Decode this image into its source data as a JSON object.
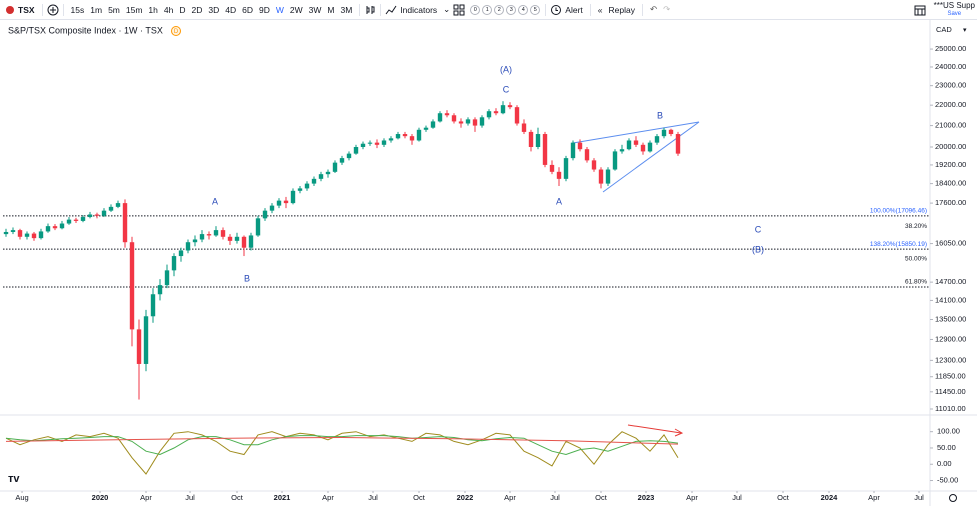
{
  "toolbar": {
    "symbol": "TSX",
    "intervals": [
      "15s",
      "1m",
      "5m",
      "15m",
      "1h",
      "4h",
      "D",
      "2D",
      "3D",
      "4D",
      "6D",
      "9D",
      "W",
      "2W",
      "3W",
      "M",
      "3M"
    ],
    "active_interval_index": 12,
    "indicators": "Indicators",
    "layouts": [
      "0",
      "1",
      "2",
      "3",
      "4",
      "5"
    ],
    "alert": "Alert",
    "replay": "Replay",
    "account": "***US Supp",
    "save": "Save"
  },
  "chart_data": {
    "type": "candlestick",
    "legend_title": "S&P/TSX Composite Index · 1W · TSX",
    "badge": "D",
    "currency": "CAD",
    "log_scale": true,
    "up_color": "#089981",
    "down_color": "#f23645",
    "ylim": [
      10985,
      26590
    ],
    "yticks": [
      {
        "value": 25000,
        "label": "25000.00"
      },
      {
        "value": 24000,
        "label": "24000.00"
      },
      {
        "value": 23000,
        "label": "23000.00"
      },
      {
        "value": 22000,
        "label": "22000.00"
      },
      {
        "value": 21000,
        "label": "21000.00"
      },
      {
        "value": 20000,
        "label": "20000.00"
      },
      {
        "value": 19200,
        "label": "19200.00"
      },
      {
        "value": 18400,
        "label": "18400.00"
      },
      {
        "value": 17600,
        "label": "17600.00"
      },
      {
        "value": 16050,
        "label": "16050.00"
      },
      {
        "value": 14700,
        "label": "14700.00"
      },
      {
        "value": 14100,
        "label": "14100.00"
      },
      {
        "value": 13500,
        "label": "13500.00"
      },
      {
        "value": 12900,
        "label": "12900.00"
      },
      {
        "value": 12300,
        "label": "12300.00"
      },
      {
        "value": 11850,
        "label": "11850.00"
      },
      {
        "value": 11450,
        "label": "11450.00"
      },
      {
        "value": 11010,
        "label": "11010.00"
      }
    ],
    "xlim": [
      -0.43,
      132
    ],
    "xticks": [
      {
        "value": 2.29,
        "label": "Aug"
      },
      {
        "value": 13.43,
        "label": "2020"
      },
      {
        "value": 20,
        "label": "Apr"
      },
      {
        "value": 26.29,
        "label": "Jul"
      },
      {
        "value": 33,
        "label": "Oct"
      },
      {
        "value": 39.43,
        "label": "2021"
      },
      {
        "value": 46,
        "label": "Apr"
      },
      {
        "value": 52.43,
        "label": "Jul"
      },
      {
        "value": 59,
        "label": "Oct"
      },
      {
        "value": 65.57,
        "label": "2022"
      },
      {
        "value": 72,
        "label": "Apr"
      },
      {
        "value": 78.43,
        "label": "Jul"
      },
      {
        "value": 85,
        "label": "Oct"
      },
      {
        "value": 91.43,
        "label": "2023"
      },
      {
        "value": 98,
        "label": "Apr"
      },
      {
        "value": 104.43,
        "label": "Jul"
      },
      {
        "value": 111,
        "label": "Oct"
      },
      {
        "value": 117.57,
        "label": "2024"
      },
      {
        "value": 124,
        "label": "Apr"
      },
      {
        "value": 130.43,
        "label": "Jul"
      }
    ],
    "candles": [
      [
        16400,
        16600,
        16300,
        16480
      ],
      [
        16480,
        16650,
        16400,
        16550
      ],
      [
        16550,
        16600,
        16200,
        16300
      ],
      [
        16300,
        16500,
        16200,
        16420
      ],
      [
        16420,
        16480,
        16150,
        16250
      ],
      [
        16250,
        16600,
        16200,
        16500
      ],
      [
        16500,
        16800,
        16450,
        16700
      ],
      [
        16700,
        16780,
        16550,
        16620
      ],
      [
        16620,
        16900,
        16580,
        16800
      ],
      [
        16800,
        17050,
        16750,
        16950
      ],
      [
        16950,
        17020,
        16820,
        16900
      ],
      [
        16900,
        17120,
        16850,
        17050
      ],
      [
        17050,
        17250,
        17000,
        17150
      ],
      [
        17150,
        17220,
        17000,
        17100
      ],
      [
        17100,
        17400,
        17050,
        17300
      ],
      [
        17300,
        17550,
        17250,
        17450
      ],
      [
        17450,
        17700,
        17400,
        17600
      ],
      [
        17600,
        17750,
        15900,
        16100
      ],
      [
        16100,
        16300,
        12700,
        13200
      ],
      [
        13200,
        13500,
        11250,
        12200
      ],
      [
        12200,
        13800,
        12000,
        13600
      ],
      [
        13600,
        14500,
        13400,
        14300
      ],
      [
        14300,
        14800,
        14100,
        14600
      ],
      [
        14600,
        15300,
        14500,
        15100
      ],
      [
        15100,
        15700,
        14900,
        15600
      ],
      [
        15600,
        15900,
        15400,
        15800
      ],
      [
        15800,
        16200,
        15700,
        16100
      ],
      [
        16100,
        16350,
        15950,
        16200
      ],
      [
        16200,
        16550,
        16100,
        16400
      ],
      [
        16400,
        16500,
        16200,
        16350
      ],
      [
        16350,
        16700,
        16300,
        16550
      ],
      [
        16550,
        16650,
        16200,
        16300
      ],
      [
        16300,
        16400,
        16000,
        16150
      ],
      [
        16150,
        16450,
        16050,
        16300
      ],
      [
        16300,
        16350,
        15600,
        15900
      ],
      [
        15900,
        16450,
        15800,
        16350
      ],
      [
        16350,
        17100,
        16300,
        17000
      ],
      [
        17000,
        17400,
        16900,
        17300
      ],
      [
        17300,
        17600,
        17200,
        17500
      ],
      [
        17500,
        17800,
        17400,
        17700
      ],
      [
        17700,
        17850,
        17400,
        17600
      ],
      [
        17600,
        18200,
        17550,
        18100
      ],
      [
        18100,
        18300,
        18000,
        18200
      ],
      [
        18200,
        18500,
        18100,
        18400
      ],
      [
        18400,
        18700,
        18300,
        18600
      ],
      [
        18600,
        18900,
        18500,
        18800
      ],
      [
        18800,
        19000,
        18650,
        18900
      ],
      [
        18900,
        19400,
        18850,
        19300
      ],
      [
        19300,
        19600,
        19200,
        19500
      ],
      [
        19500,
        19800,
        19400,
        19700
      ],
      [
        19700,
        20100,
        19650,
        20000
      ],
      [
        20000,
        20250,
        19900,
        20150
      ],
      [
        20150,
        20300,
        20050,
        20200
      ],
      [
        20200,
        20350,
        19950,
        20100
      ],
      [
        20100,
        20400,
        20000,
        20300
      ],
      [
        20300,
        20500,
        20200,
        20400
      ],
      [
        20400,
        20700,
        20350,
        20600
      ],
      [
        20600,
        20700,
        20400,
        20500
      ],
      [
        20500,
        20600,
        20100,
        20300
      ],
      [
        20300,
        20900,
        20250,
        20800
      ],
      [
        20800,
        21000,
        20700,
        20900
      ],
      [
        20900,
        21300,
        20850,
        21200
      ],
      [
        21200,
        21700,
        21150,
        21600
      ],
      [
        21600,
        21750,
        21400,
        21500
      ],
      [
        21500,
        21600,
        21100,
        21200
      ],
      [
        21200,
        21350,
        20900,
        21100
      ],
      [
        21100,
        21400,
        21000,
        21300
      ],
      [
        21300,
        21400,
        20700,
        21000
      ],
      [
        21000,
        21500,
        20900,
        21400
      ],
      [
        21400,
        21800,
        21300,
        21700
      ],
      [
        21700,
        21850,
        21500,
        21600
      ],
      [
        21600,
        22200,
        21550,
        22000
      ],
      [
        22000,
        22150,
        21800,
        21900
      ],
      [
        21900,
        22000,
        21000,
        21100
      ],
      [
        21100,
        21300,
        20600,
        20700
      ],
      [
        20700,
        20800,
        19800,
        20000
      ],
      [
        20000,
        20900,
        19900,
        20600
      ],
      [
        20600,
        20700,
        19100,
        19200
      ],
      [
        19200,
        19400,
        18800,
        18900
      ],
      [
        18900,
        19100,
        18300,
        18600
      ],
      [
        18600,
        19600,
        18500,
        19500
      ],
      [
        19500,
        20300,
        19400,
        20200
      ],
      [
        20200,
        20350,
        19800,
        19900
      ],
      [
        19900,
        20000,
        19300,
        19400
      ],
      [
        19400,
        19500,
        18900,
        19000
      ],
      [
        19000,
        19100,
        18200,
        18400
      ],
      [
        18400,
        19100,
        18300,
        19000
      ],
      [
        19000,
        19900,
        18950,
        19800
      ],
      [
        19800,
        20100,
        19700,
        19900
      ],
      [
        19900,
        20400,
        19850,
        20300
      ],
      [
        20300,
        20500,
        20000,
        20100
      ],
      [
        20100,
        20200,
        19650,
        19800
      ],
      [
        19800,
        20300,
        19750,
        20200
      ],
      [
        20200,
        20600,
        20100,
        20500
      ],
      [
        20500,
        20900,
        20400,
        20800
      ],
      [
        20800,
        20850,
        20500,
        20600
      ],
      [
        20600,
        20700,
        19600,
        19700
      ]
    ],
    "levels": [
      {
        "label": "100.00%(17096.46)",
        "value": 17096.46,
        "line": true,
        "color": "#2962ff"
      },
      {
        "label": "38.20%",
        "value": 16700,
        "line": false,
        "color": "#131722"
      },
      {
        "label": "138.20%(15850.19)",
        "value": 15850.19,
        "line": true,
        "color": "#2962ff"
      },
      {
        "label": "50.00%",
        "value": 15500,
        "line": false,
        "color": "#131722"
      },
      {
        "label": "61.80%",
        "value": 14538,
        "line": true,
        "color": "#131722"
      }
    ],
    "annotations": [
      "(A)",
      "C",
      "B",
      "A",
      "C",
      "(B)",
      "A",
      "B"
    ],
    "indicator": {
      "ylim": [
        -76,
        142
      ],
      "yticks": [
        {
          "value": 100,
          "label": "100.00"
        },
        {
          "value": 50,
          "label": "50.00"
        },
        {
          "value": 0,
          "label": "0.00"
        },
        {
          "value": -50,
          "label": "-50.00"
        }
      ],
      "series": [
        {
          "color": "#a08c1e",
          "x": [
            0,
            2,
            4,
            6,
            8,
            10,
            12,
            14,
            16,
            18,
            20,
            22,
            24,
            26,
            28,
            30,
            32,
            34,
            36,
            38,
            40,
            42,
            44,
            46,
            48,
            50,
            52,
            54,
            56,
            58,
            60,
            62,
            64,
            66,
            68,
            70,
            72,
            74,
            76,
            78,
            80,
            82,
            84,
            86,
            88,
            90,
            92,
            94,
            96
          ],
          "values": [
            80,
            60,
            75,
            85,
            70,
            90,
            85,
            95,
            80,
            20,
            -30,
            40,
            95,
            100,
            90,
            70,
            40,
            30,
            90,
            100,
            85,
            95,
            90,
            75,
            95,
            100,
            85,
            90,
            80,
            70,
            95,
            90,
            70,
            60,
            75,
            95,
            90,
            40,
            20,
            -5,
            70,
            50,
            0,
            60,
            100,
            80,
            40,
            90,
            20
          ]
        },
        {
          "color": "#4caf50",
          "x": [
            0,
            2,
            4,
            6,
            8,
            10,
            12,
            14,
            16,
            18,
            20,
            22,
            24,
            26,
            28,
            30,
            32,
            34,
            36,
            38,
            40,
            42,
            44,
            46,
            48,
            50,
            52,
            54,
            56,
            58,
            60,
            62,
            64,
            66,
            68,
            70,
            72,
            74,
            76,
            78,
            80,
            82,
            84,
            86,
            88,
            90,
            92,
            94,
            96
          ],
          "values": [
            80,
            75,
            72,
            75,
            78,
            80,
            82,
            85,
            85,
            70,
            40,
            30,
            50,
            75,
            85,
            85,
            75,
            60,
            60,
            75,
            85,
            88,
            88,
            85,
            85,
            88,
            88,
            88,
            85,
            80,
            82,
            85,
            82,
            75,
            72,
            78,
            82,
            80,
            60,
            40,
            30,
            45,
            50,
            40,
            55,
            70,
            72,
            70,
            65
          ]
        },
        {
          "color": "#e5534b",
          "x": [
            0,
            16,
            32,
            48,
            64,
            80,
            96
          ],
          "values": [
            70,
            75,
            80,
            82,
            78,
            72,
            62
          ]
        }
      ]
    }
  }
}
